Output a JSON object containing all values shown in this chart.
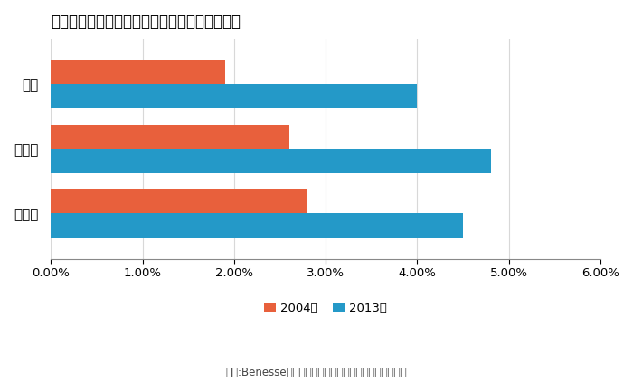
{
  "title": "公立学校対象食物アレルギーのある子供の割合",
  "categories": [
    "小学校",
    "中学校",
    "高校"
  ],
  "series_2004": [
    0.028,
    0.026,
    0.019
  ],
  "series_2013": [
    0.045,
    0.048,
    0.04
  ],
  "color_2004": "#E8603C",
  "color_2013": "#2499C8",
  "xlim": [
    0,
    0.06
  ],
  "xticks": [
    0.0,
    0.01,
    0.02,
    0.03,
    0.04,
    0.05,
    0.06
  ],
  "bar_height": 0.38,
  "label_2004": "2004年",
  "label_2013": "2013年",
  "source_text": "出展:Benesse教育情報サイト提供文部科学省の調査結果",
  "title_fontsize": 12,
  "label_fontsize": 11,
  "tick_fontsize": 9.5,
  "legend_fontsize": 9.5,
  "source_fontsize": 8.5,
  "background_color": "#ffffff",
  "grid_color": "#d8d8d8"
}
